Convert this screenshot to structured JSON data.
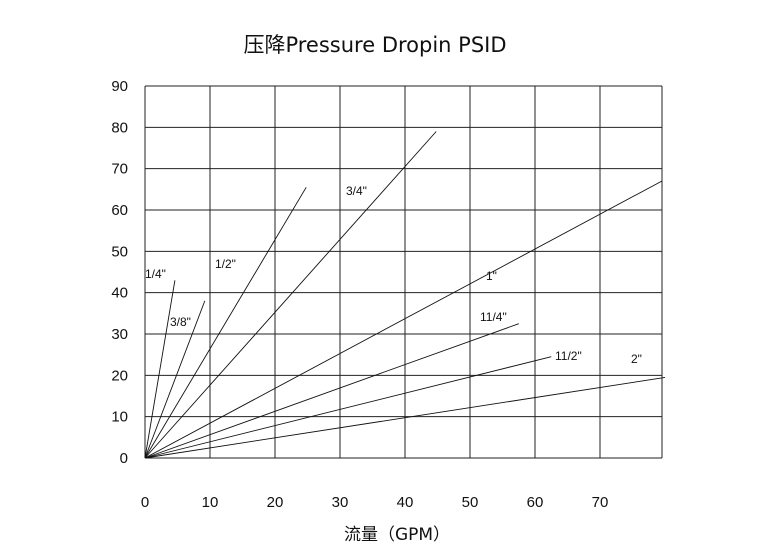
{
  "chart_data": {
    "type": "line",
    "title": "压降Pressure Dropin PSID",
    "xlabel": "流量（GPM）",
    "ylabel": "",
    "xlim": [
      0,
      80
    ],
    "ylim": [
      0,
      90
    ],
    "x_ticks": [
      "0",
      "10",
      "20",
      "30",
      "40",
      "50",
      "60",
      "70"
    ],
    "y_ticks": [
      "0",
      "10",
      "20",
      "30",
      "40",
      "50",
      "60",
      "70",
      "80",
      "90"
    ],
    "grid": true,
    "legend": "none",
    "series": [
      {
        "name": "1/4\"",
        "points": [
          [
            0,
            0
          ],
          [
            4.6,
            43
          ]
        ]
      },
      {
        "name": "3/8\"",
        "points": [
          [
            0,
            0
          ],
          [
            9.2,
            38
          ]
        ]
      },
      {
        "name": "1/2\"",
        "points": [
          [
            0,
            0
          ],
          [
            24.8,
            65.5
          ]
        ]
      },
      {
        "name": "3/4\"",
        "points": [
          [
            0,
            0
          ],
          [
            44.8,
            79
          ]
        ]
      },
      {
        "name": "1\"",
        "points": [
          [
            0,
            0
          ],
          [
            79.5,
            67
          ]
        ]
      },
      {
        "name": "11/4\"",
        "points": [
          [
            0,
            0
          ],
          [
            57.5,
            32.5
          ]
        ]
      },
      {
        "name": "11/2\"",
        "points": [
          [
            0,
            0
          ],
          [
            62.5,
            24.5
          ]
        ]
      },
      {
        "name": "2\"",
        "points": [
          [
            0,
            0
          ],
          [
            80,
            19.5
          ]
        ]
      }
    ]
  }
}
